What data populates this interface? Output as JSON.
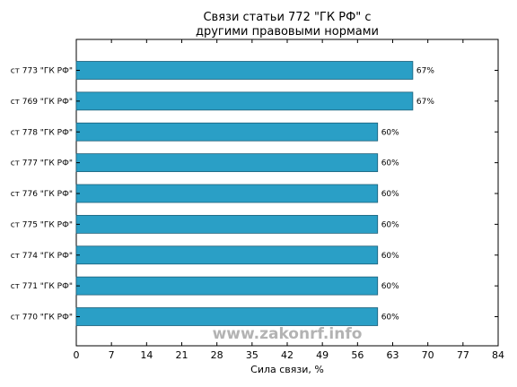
{
  "chart_data": {
    "type": "bar",
    "orientation": "horizontal",
    "title_lines": [
      "Связи статьи 772 \"ГК РФ\" с",
      "другими правовыми нормами"
    ],
    "xlabel": "Сила связи, %",
    "categories": [
      "ст 773 \"ГК РФ\"",
      "ст 769 \"ГК РФ\"",
      "ст 778 \"ГК РФ\"",
      "ст 777 \"ГК РФ\"",
      "ст 776 \"ГК РФ\"",
      "ст 775 \"ГК РФ\"",
      "ст 774 \"ГК РФ\"",
      "ст 771 \"ГК РФ\"",
      "ст 770 \"ГК РФ\""
    ],
    "values": [
      67,
      67,
      60,
      60,
      60,
      60,
      60,
      60,
      60
    ],
    "data_labels": [
      "67%",
      "67%",
      "60%",
      "60%",
      "60%",
      "60%",
      "60%",
      "60%",
      "60%"
    ],
    "xlim": [
      0,
      84
    ],
    "xticks": [
      0,
      7,
      14,
      21,
      28,
      35,
      42,
      49,
      56,
      63,
      70,
      77,
      84
    ],
    "bar_color": "#2a9fc6",
    "grid": false
  },
  "watermark": "www.zakonrf.info"
}
